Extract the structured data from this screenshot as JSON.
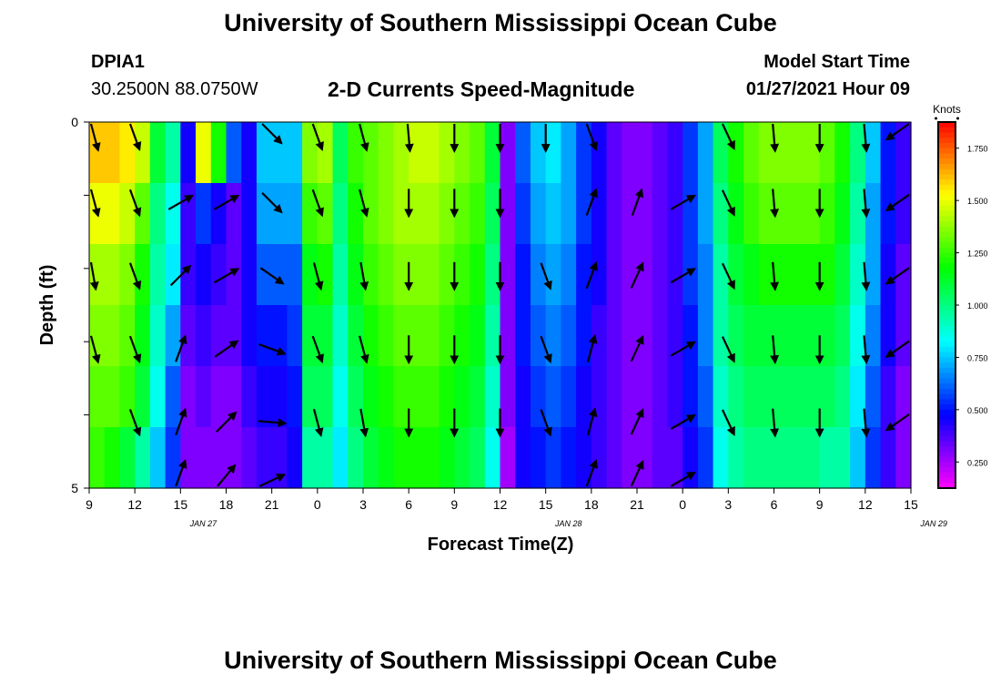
{
  "page": {
    "title_top": "University of Southern Mississippi Ocean Cube",
    "title_bottom": "University of Southern Mississippi Ocean Cube",
    "station": "DPIA1",
    "coords": "30.2500N 88.0750W",
    "plot_title": "2-D Currents Speed-Magnitude",
    "model_start_label": "Model Start Time",
    "model_start_value": "01/27/2021 Hour 09"
  },
  "chart_data": {
    "type": "heatmap",
    "title": "2-D Currents Speed-Magnitude",
    "xlabel": "Forecast Time(Z)",
    "ylabel": "Depth (ft)",
    "x_tick_labels": [
      "9",
      "12",
      "15",
      "18",
      "21",
      "0",
      "3",
      "6",
      "9",
      "12",
      "15",
      "18",
      "21",
      "0",
      "3",
      "6",
      "9",
      "12",
      "15"
    ],
    "x_date_labels": [
      {
        "label": "JAN 27",
        "hour_offset": 7.5
      },
      {
        "label": "JAN 28",
        "hour_offset": 31.5
      },
      {
        "label": "JAN 29",
        "hour_offset": 55.5
      }
    ],
    "x_range_hours": [
      0,
      54
    ],
    "y_range_ft": [
      0,
      5
    ],
    "y_tick_labels": [
      "0",
      "",
      "",
      "",
      "",
      "5"
    ],
    "colorbar": {
      "label": "Knots",
      "min": 0.125,
      "max": 1.875,
      "tick_labels": [
        "0.250",
        "0.500",
        "0.750",
        "1.000",
        "1.250",
        "1.500",
        "1.750"
      ],
      "tick_values": [
        0.25,
        0.5,
        0.75,
        1.0,
        1.25,
        1.5,
        1.75
      ]
    },
    "speed_rows": [
      [
        1.6,
        1.6,
        1.55,
        1.45,
        1.1,
        0.95,
        0.45,
        1.5,
        1.2,
        0.6,
        0.45,
        0.75,
        0.75,
        0.75,
        1.35,
        1.4,
        1.05,
        1.25,
        1.3,
        1.35,
        1.4,
        1.45,
        1.45,
        1.4,
        1.35,
        1.3,
        1.1,
        0.3,
        0.6,
        0.75,
        0.8,
        0.7,
        0.55,
        0.45,
        0.35,
        0.3,
        0.3,
        0.35,
        0.4,
        0.55,
        0.7,
        1.05,
        1.2,
        1.3,
        1.35,
        1.35,
        1.35,
        1.35,
        1.3,
        1.2,
        1.0,
        0.75,
        0.5,
        0.4
      ],
      [
        1.5,
        1.5,
        1.45,
        1.3,
        1.0,
        0.85,
        0.4,
        0.55,
        0.45,
        0.35,
        0.45,
        0.7,
        0.7,
        0.7,
        1.25,
        1.3,
        1.0,
        1.2,
        1.3,
        1.35,
        1.4,
        1.4,
        1.4,
        1.35,
        1.3,
        1.25,
        1.05,
        0.3,
        0.55,
        0.7,
        0.75,
        0.7,
        0.55,
        0.45,
        0.35,
        0.3,
        0.3,
        0.35,
        0.4,
        0.55,
        0.7,
        1.0,
        1.15,
        1.25,
        1.3,
        1.3,
        1.3,
        1.3,
        1.25,
        1.15,
        0.95,
        0.7,
        0.5,
        0.4
      ],
      [
        1.4,
        1.4,
        1.35,
        1.2,
        0.95,
        0.8,
        0.4,
        0.45,
        0.4,
        0.35,
        0.45,
        0.6,
        0.6,
        0.6,
        1.15,
        1.2,
        0.95,
        1.15,
        1.25,
        1.3,
        1.35,
        1.35,
        1.35,
        1.3,
        1.25,
        1.2,
        1.0,
        0.3,
        0.5,
        0.65,
        0.7,
        0.65,
        0.5,
        0.45,
        0.35,
        0.3,
        0.3,
        0.35,
        0.4,
        0.55,
        0.65,
        0.95,
        1.1,
        1.15,
        1.2,
        1.2,
        1.2,
        1.2,
        1.2,
        1.1,
        0.9,
        0.7,
        0.45,
        0.35
      ],
      [
        1.35,
        1.35,
        1.3,
        1.15,
        0.9,
        0.7,
        0.35,
        0.4,
        0.35,
        0.35,
        0.45,
        0.5,
        0.5,
        0.55,
        1.1,
        1.1,
        0.9,
        1.1,
        1.2,
        1.25,
        1.3,
        1.3,
        1.3,
        1.25,
        1.2,
        1.15,
        0.95,
        0.3,
        0.5,
        0.6,
        0.65,
        0.6,
        0.5,
        0.4,
        0.35,
        0.3,
        0.3,
        0.35,
        0.4,
        0.5,
        0.65,
        0.95,
        1.05,
        1.1,
        1.1,
        1.1,
        1.1,
        1.1,
        1.1,
        1.05,
        0.85,
        0.65,
        0.45,
        0.35
      ],
      [
        1.3,
        1.3,
        1.25,
        1.1,
        0.85,
        0.6,
        0.3,
        0.35,
        0.3,
        0.3,
        0.4,
        0.45,
        0.45,
        0.5,
        1.05,
        1.05,
        0.85,
        1.05,
        1.15,
        1.2,
        1.25,
        1.25,
        1.25,
        1.2,
        1.15,
        1.1,
        0.9,
        0.3,
        0.45,
        0.55,
        0.6,
        0.55,
        0.45,
        0.4,
        0.35,
        0.3,
        0.3,
        0.35,
        0.4,
        0.5,
        0.6,
        0.9,
        1.0,
        1.05,
        1.05,
        1.05,
        1.05,
        1.05,
        1.05,
        1.0,
        0.8,
        0.6,
        0.4,
        0.3
      ],
      [
        1.25,
        1.2,
        1.1,
        0.95,
        0.75,
        0.55,
        0.3,
        0.3,
        0.3,
        0.3,
        0.35,
        0.4,
        0.4,
        0.45,
        0.95,
        0.95,
        0.8,
        1.0,
        1.1,
        1.15,
        1.2,
        1.2,
        1.2,
        1.15,
        1.1,
        1.05,
        0.85,
        0.25,
        0.45,
        0.5,
        0.55,
        0.5,
        0.45,
        0.4,
        0.35,
        0.3,
        0.3,
        0.35,
        0.35,
        0.45,
        0.55,
        0.85,
        0.95,
        1.0,
        1.0,
        1.0,
        1.0,
        1.0,
        0.95,
        0.95,
        0.75,
        0.55,
        0.4,
        0.3
      ]
    ],
    "vector_x_hours": [
      0,
      3,
      6,
      9,
      12,
      15,
      18,
      21,
      24,
      27,
      30,
      33,
      36,
      39,
      42,
      45,
      48,
      51,
      54
    ],
    "vector_depth_ft": [
      0.1,
      1.1,
      2.1,
      3.1,
      4.1,
      5.0
    ],
    "vector_dir_deg": [
      [
        165,
        160,
        null,
        null,
        135,
        160,
        165,
        175,
        180,
        180,
        180,
        160,
        null,
        null,
        155,
        175,
        180,
        175,
        235
      ],
      [
        165,
        160,
        60,
        60,
        135,
        160,
        165,
        180,
        180,
        180,
        null,
        20,
        20,
        60,
        155,
        175,
        180,
        175,
        235
      ],
      [
        170,
        160,
        45,
        60,
        125,
        165,
        170,
        180,
        180,
        180,
        160,
        20,
        25,
        60,
        155,
        175,
        180,
        175,
        235
      ],
      [
        165,
        160,
        20,
        55,
        110,
        160,
        165,
        180,
        180,
        180,
        160,
        15,
        25,
        60,
        155,
        175,
        180,
        175,
        235
      ],
      [
        null,
        160,
        20,
        45,
        95,
        165,
        170,
        180,
        180,
        180,
        160,
        15,
        25,
        60,
        155,
        175,
        180,
        175,
        235
      ],
      [
        null,
        null,
        20,
        40,
        65,
        null,
        null,
        null,
        null,
        null,
        null,
        20,
        25,
        60,
        null,
        null,
        null,
        null,
        null
      ]
    ]
  }
}
